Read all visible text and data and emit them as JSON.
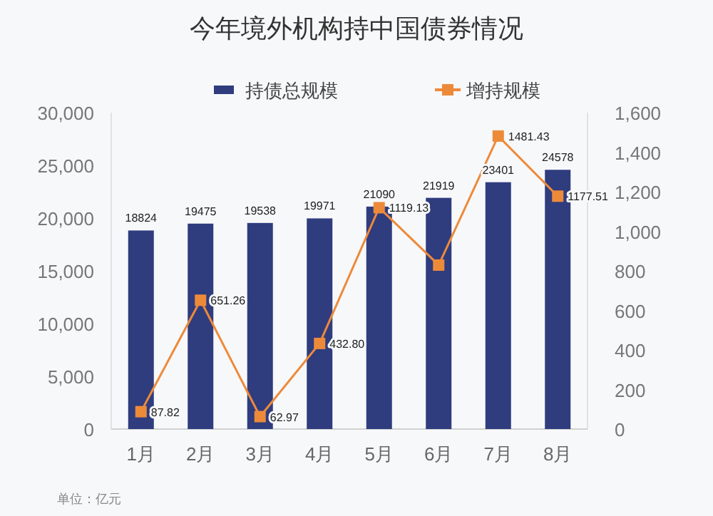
{
  "chart_data": {
    "type": "bar",
    "title": "今年境外机构持中国债券情况",
    "categories": [
      "1月",
      "2月",
      "3月",
      "4月",
      "5月",
      "6月",
      "7月",
      "8月"
    ],
    "series": [
      {
        "name": "持债总规模",
        "color": "#2f3c7e",
        "values": [
          18824,
          19475,
          19538,
          19971,
          21090,
          21919,
          23401,
          24578
        ],
        "value_labels": [
          "18824",
          "19475",
          "19538",
          "19971",
          "21090",
          "21919",
          "23401",
          "24578"
        ]
      },
      {
        "name": "增持规模",
        "type": "line",
        "axis": "y2",
        "color": "#ed8a3a",
        "marker": "square",
        "values": [
          87.82,
          651.26,
          62.97,
          432.8,
          1119.13,
          829,
          1481.43,
          1177.51
        ],
        "value_labels": [
          "87.82",
          "651.26",
          "62.97",
          "432.80",
          "1119.13",
          null,
          "1481.43",
          "1177.51"
        ]
      }
    ],
    "ylim": [
      0,
      30000
    ],
    "yticks": [
      {
        "value": 0,
        "label": "0"
      },
      {
        "value": 5000,
        "label": "5,000"
      },
      {
        "value": 10000,
        "label": "10,000"
      },
      {
        "value": 15000,
        "label": "15,000"
      },
      {
        "value": 20000,
        "label": "20,000"
      },
      {
        "value": 25000,
        "label": "25,000"
      },
      {
        "value": 30000,
        "label": "30,000"
      }
    ],
    "y2lim": [
      0,
      1600
    ],
    "y2ticks": [
      {
        "value": 0,
        "label": "0"
      },
      {
        "value": 200,
        "label": "200"
      },
      {
        "value": 400,
        "label": "400"
      },
      {
        "value": 600,
        "label": "600"
      },
      {
        "value": 800,
        "label": "800"
      },
      {
        "value": 1000,
        "label": "1,000"
      },
      {
        "value": 1200,
        "label": "1,200"
      },
      {
        "value": 1400,
        "label": "1,400"
      },
      {
        "value": 1600,
        "label": "1,600"
      }
    ],
    "legend": "top",
    "grid": false,
    "annotations": [
      "单位：亿元"
    ]
  }
}
